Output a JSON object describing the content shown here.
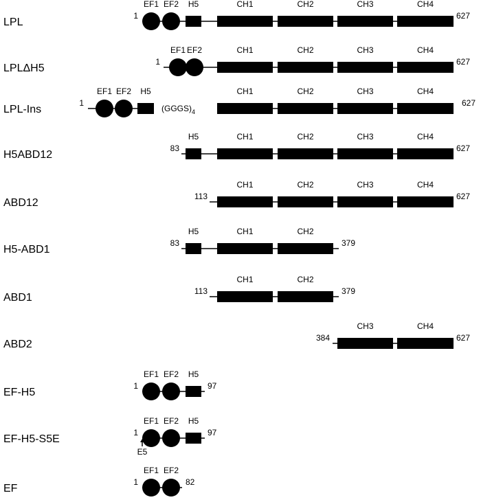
{
  "constructs": [
    {
      "name": "LPL",
      "start": "1",
      "end": "627",
      "domains": [
        "EF1",
        "EF2",
        "H5",
        "CH1",
        "CH2",
        "CH3",
        "CH4"
      ]
    },
    {
      "name": "LPLΔH5",
      "start": "1",
      "end": "627",
      "domains": [
        "EF1",
        "EF2",
        "CH1",
        "CH2",
        "CH3",
        "CH4"
      ]
    },
    {
      "name": "LPL-Ins",
      "start": "1",
      "end": "627",
      "domains": [
        "EF1",
        "EF2",
        "H5",
        "CH1",
        "CH2",
        "CH3",
        "CH4"
      ],
      "linker": {
        "text": "(GGGS)",
        "subscript": "4"
      }
    },
    {
      "name": "H5ABD12",
      "start": "83",
      "end": "627",
      "domains": [
        "H5",
        "CH1",
        "CH2",
        "CH3",
        "CH4"
      ]
    },
    {
      "name": "ABD12",
      "start": "113",
      "end": "627",
      "domains": [
        "CH1",
        "CH2",
        "CH3",
        "CH4"
      ]
    },
    {
      "name": "H5-ABD1",
      "start": "83",
      "end": "379",
      "domains": [
        "H5",
        "CH1",
        "CH2"
      ]
    },
    {
      "name": "ABD1",
      "start": "113",
      "end": "379",
      "domains": [
        "CH1",
        "CH2"
      ]
    },
    {
      "name": "ABD2",
      "start": "384",
      "end": "627",
      "domains": [
        "CH3",
        "CH4"
      ]
    },
    {
      "name": "EF-H5",
      "start": "1",
      "end": "97",
      "domains": [
        "EF1",
        "EF2",
        "H5"
      ]
    },
    {
      "name": "EF-H5-S5E",
      "start": "1",
      "end": "97",
      "domains": [
        "EF1",
        "EF2",
        "H5"
      ],
      "mutation": "E5"
    },
    {
      "name": "EF",
      "start": "1",
      "end": "82",
      "domains": [
        "EF1",
        "EF2"
      ]
    }
  ]
}
